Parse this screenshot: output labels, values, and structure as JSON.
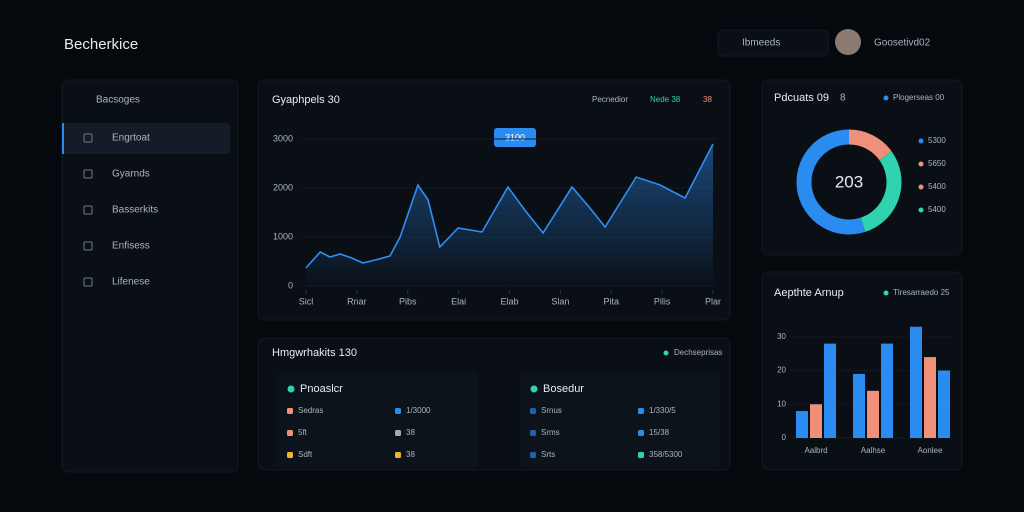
{
  "header": {
    "brand": "Becherkice",
    "search": "Ibmeeds",
    "user": "Goosetivd02"
  },
  "sidebar": {
    "heading": "Bacsoges",
    "items": [
      "Engrtoat",
      "Gyarnds",
      "Basserkits",
      "Enfisess",
      "Lifenese"
    ]
  },
  "chart_data": [
    {
      "type": "line",
      "title": "Gyaphpels 30",
      "legend": [
        "Pecnedior",
        "Nede 38",
        "38"
      ],
      "annotation": "3100",
      "x": [
        0,
        0.28,
        0.47,
        0.67,
        0.9,
        1.12,
        1.36,
        1.65,
        1.85,
        2.2,
        2.4,
        2.63,
        2.99,
        3.46,
        3.97,
        4.3,
        4.66,
        5.23,
        5.58,
        5.88,
        6.49,
        6.96,
        7.45,
        8
      ],
      "xlim": [
        0,
        8
      ],
      "xticks": [
        {
          "value": 0,
          "label": "Sicl"
        },
        {
          "value": 1,
          "label": "Rnar"
        },
        {
          "value": 2,
          "label": "Pibs"
        },
        {
          "value": 3,
          "label": "Elai"
        },
        {
          "value": 4,
          "label": "Elab"
        },
        {
          "value": 5,
          "label": "Slan"
        },
        {
          "value": 6,
          "label": "Pita"
        },
        {
          "value": 7,
          "label": "Pilis"
        },
        {
          "value": 8,
          "label": "Plar"
        }
      ],
      "series": [
        {
          "color": "#2f8ef0",
          "values": [
            370,
            694,
            592,
            653,
            571,
            469,
            531,
            612,
            1000,
            2061,
            1755,
            796,
            1184,
            1102,
            2020,
            1551,
            1082,
            2020,
            1592,
            1204,
            2224,
            2061,
            1796,
            2898
          ]
        }
      ],
      "ylim": [
        0,
        3000
      ],
      "yticks": [
        0,
        1000,
        2000,
        3000
      ]
    },
    {
      "type": "pie",
      "title": "Pdcuats 09",
      "subtitle": "8",
      "center_label": "203",
      "legend_title": "Plogerseas 00",
      "values": [
        15,
        30,
        55
      ],
      "colors": [
        "#f0907a",
        "#2fd3b0",
        "#2a8cf0"
      ],
      "legend": [
        "5300",
        "5650",
        "5400",
        "5400"
      ],
      "legend_colors": [
        "#2a8cf0",
        "#f0907a",
        "#f0907a",
        "#2fd3b0"
      ]
    },
    {
      "type": "bar",
      "title": "Aepthte Arnup",
      "legend": "Tlresarraedo 25",
      "categories": [
        "Aalbrd",
        "Aalhse",
        "Aonlee"
      ],
      "series": [
        {
          "color": "#2a8cf0",
          "values": [
            8,
            19,
            33
          ]
        },
        {
          "color": "#f0907a",
          "values": [
            10,
            14,
            24
          ]
        },
        {
          "color": "#2a8cf0",
          "values": [
            28,
            28,
            20
          ]
        }
      ],
      "ylim": [
        0,
        35
      ],
      "yticks": [
        0,
        10,
        20,
        30
      ]
    }
  ],
  "panel": {
    "title": "Hmgwrhakits 130",
    "legend": "Dechseprisas",
    "cards": [
      {
        "title": "Pnoaslcr",
        "rows": [
          [
            "Sedras",
            "1/3000"
          ],
          [
            "5ft",
            "38"
          ],
          [
            "Sdft",
            "38"
          ]
        ]
      },
      {
        "title": "Bosedur",
        "rows": [
          [
            "Srnus",
            "1/330/5"
          ],
          [
            "Srms",
            "15/38"
          ],
          [
            "Srts",
            "358/5300"
          ]
        ]
      }
    ]
  }
}
